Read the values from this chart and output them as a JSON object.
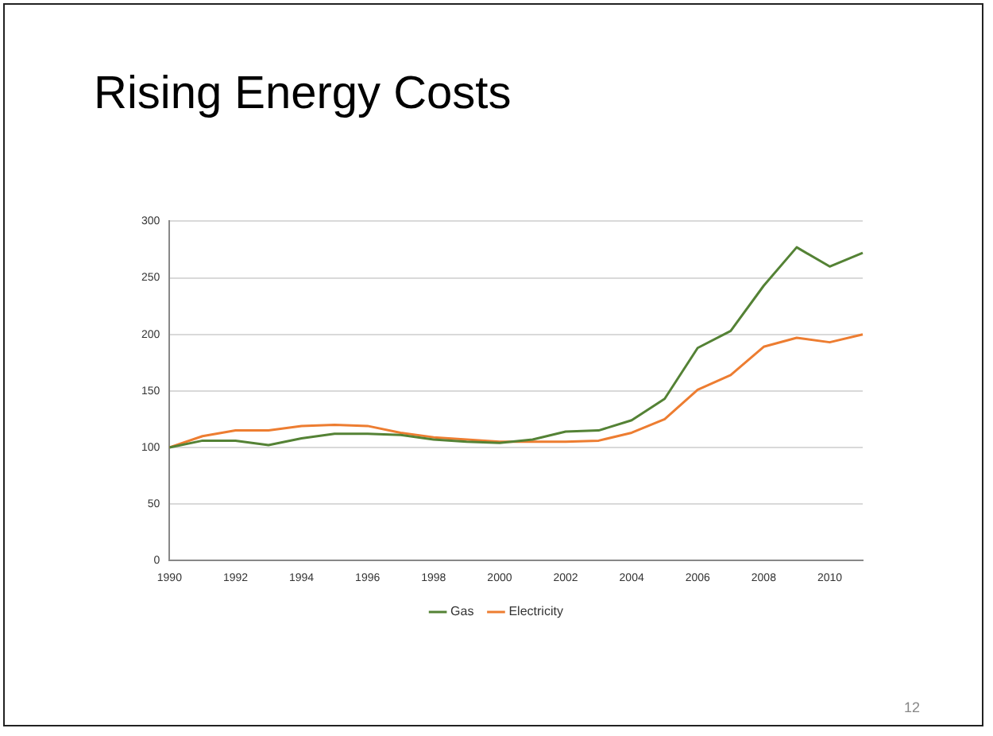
{
  "chart_data": {
    "type": "line",
    "title": "Rising Energy Costs",
    "categories": [
      "1990",
      null,
      "1992",
      null,
      "1994",
      null,
      "1996",
      null,
      "1998",
      null,
      "2000",
      null,
      "2002",
      null,
      "2004",
      null,
      "2006",
      null,
      "2008",
      null,
      "2010",
      null
    ],
    "series": [
      {
        "name": "Gas",
        "color": "#548235",
        "values": [
          100,
          106,
          106,
          102,
          108,
          112,
          112,
          111,
          107,
          105,
          104,
          107,
          114,
          115,
          124,
          143,
          188,
          203,
          243,
          277,
          260,
          272
        ]
      },
      {
        "name": "Electricity",
        "color": "#ed7d31",
        "values": [
          100,
          110,
          115,
          115,
          119,
          120,
          119,
          113,
          109,
          107,
          105,
          105,
          105,
          106,
          113,
          125,
          151,
          164,
          189,
          197,
          193,
          200
        ]
      }
    ],
    "ylim": [
      0,
      300
    ],
    "yticks": [
      0,
      50,
      100,
      150,
      200,
      250,
      300
    ],
    "grid": "y",
    "legend": "bottom",
    "marker": "none",
    "line_style": "solid",
    "annotations": [
      "12"
    ]
  }
}
